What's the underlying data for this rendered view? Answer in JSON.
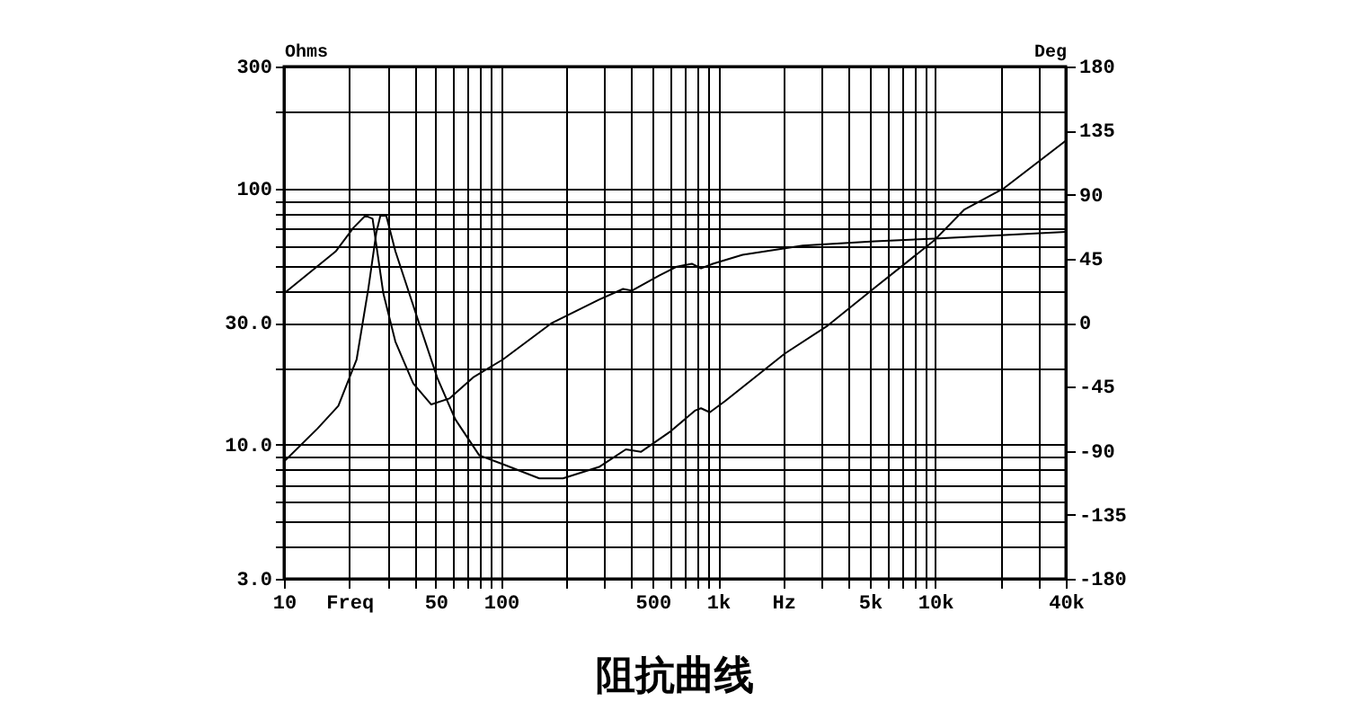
{
  "chart_data": {
    "type": "line",
    "title": "阻抗曲线",
    "ylabel": "Ohms",
    "y2label": "Deg",
    "log": "xy",
    "grid": true,
    "xlim": [
      10,
      40000
    ],
    "xticks": [
      10,
      {
        "value": 20,
        "label": "Freq"
      },
      {
        "value": 30,
        "label": null
      },
      {
        "value": 40,
        "label": null
      },
      50,
      {
        "value": 60,
        "label": null
      },
      {
        "value": 70,
        "label": null
      },
      {
        "value": 80,
        "label": null
      },
      {
        "value": 90,
        "label": null
      },
      100,
      {
        "value": 200,
        "label": null
      },
      {
        "value": 300,
        "label": null
      },
      {
        "value": 400,
        "label": null
      },
      500,
      {
        "value": 600,
        "label": null
      },
      {
        "value": 700,
        "label": null
      },
      {
        "value": 800,
        "label": null
      },
      {
        "value": 900,
        "label": null
      },
      {
        "value": 1000,
        "label": "1k"
      },
      {
        "value": 2000,
        "label": "Hz"
      },
      {
        "value": 3000,
        "label": null
      },
      {
        "value": 4000,
        "label": null
      },
      {
        "value": 5000,
        "label": "5k"
      },
      {
        "value": 6000,
        "label": null
      },
      {
        "value": 7000,
        "label": null
      },
      {
        "value": 8000,
        "label": null
      },
      {
        "value": 9000,
        "label": null
      },
      {
        "value": 10000,
        "label": "10k"
      },
      {
        "value": 20000,
        "label": null
      },
      {
        "value": 30000,
        "label": null
      },
      {
        "value": 40000,
        "label": "40k"
      }
    ],
    "ylim": [
      3,
      300
    ],
    "yticks": [
      {
        "value": 3,
        "label": "3.0"
      },
      {
        "value": 4,
        "label": null
      },
      {
        "value": 5,
        "label": null
      },
      {
        "value": 6,
        "label": null
      },
      {
        "value": 7,
        "label": null
      },
      {
        "value": 8,
        "label": null
      },
      {
        "value": 9,
        "label": null
      },
      {
        "value": 10,
        "label": "10.0"
      },
      {
        "value": 20,
        "label": null
      },
      {
        "value": 30,
        "label": "30.0"
      },
      {
        "value": 40,
        "label": null
      },
      {
        "value": 50,
        "label": null
      },
      {
        "value": 60,
        "label": null
      },
      {
        "value": 70,
        "label": null
      },
      {
        "value": 80,
        "label": null
      },
      {
        "value": 90,
        "label": null
      },
      100,
      {
        "value": 200,
        "label": null
      },
      300
    ],
    "y2lim": [
      -180,
      180
    ],
    "y2ticks": [
      -180,
      -135,
      -90,
      -45,
      0,
      45,
      90,
      135,
      180
    ],
    "series": [
      {
        "color": "#000000",
        "x": [
          10,
          14.3,
          17.8,
          21.6,
          24.5,
          26.6,
          27.8,
          29.6,
          32.6,
          42,
          50.8,
          61.5,
          79.4,
          102,
          150,
          193,
          283,
          376,
          442,
          605,
          782,
          834,
          916,
          1074,
          2027,
          3162,
          5260,
          9930,
          13650,
          20600,
          40000
        ],
        "values": [
          8.6,
          11.6,
          14.2,
          21.5,
          41,
          67,
          78.5,
          78.5,
          57,
          29.7,
          18.3,
          12.6,
          9.1,
          8.4,
          7.4,
          7.4,
          8.2,
          9.6,
          9.4,
          11.3,
          13.6,
          13.9,
          13.4,
          14.8,
          22.7,
          29,
          41,
          63,
          83,
          100,
          154
        ]
      },
      {
        "color": "#000000",
        "axis": "y2",
        "x": [
          10,
          17.3,
          20.9,
          23.7,
          25.6,
          26.9,
          28.7,
          32.6,
          39.4,
          47.7,
          57.8,
          74.4,
          102,
          170,
          283,
          365,
          401,
          535,
          646,
          757,
          834,
          946,
          1297,
          2455,
          5260,
          9930,
          40000
        ],
        "values": [
          20.5,
          50,
          66.7,
          75.2,
          73,
          50,
          20.5,
          -13.3,
          -42.7,
          -57.5,
          -53.3,
          -38.5,
          -25.9,
          -0.6,
          16.2,
          23.7,
          22.5,
          33.1,
          39.4,
          41.4,
          38.1,
          41.4,
          47.7,
          54.1,
          57.1,
          59.1,
          63.8
        ]
      }
    ]
  }
}
